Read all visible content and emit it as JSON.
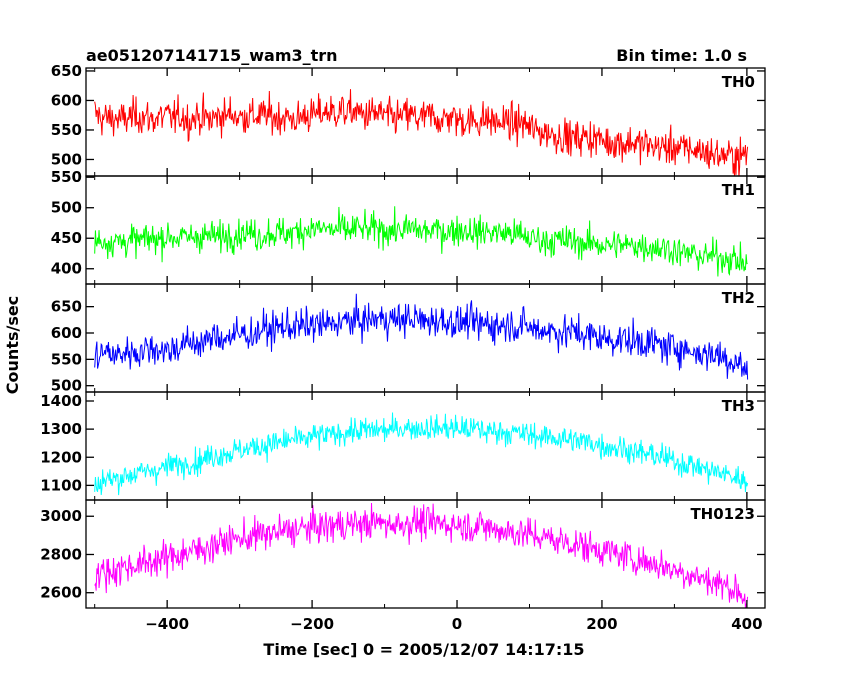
{
  "header": {
    "title": "ae051207141715_wam3_trn",
    "bin_time": "Bin time: 1.0 s"
  },
  "axes": {
    "xlabel": "Time [sec] 0 = 2005/12/07 14:17:15",
    "ylabel": "Counts/sec",
    "xlim": [
      -512,
      425
    ],
    "xticks": [
      -400,
      -200,
      0,
      200,
      400
    ],
    "xtick_labels": [
      "−400",
      "−200",
      "0",
      "200",
      "400"
    ]
  },
  "chart_data": {
    "type": "line",
    "title": "ae051207141715_wam3_trn",
    "xlabel": "Time [sec] 0 = 2005/12/07 14:17:15",
    "ylabel": "Counts/sec",
    "bin_time_s": 1.0,
    "x_range": [
      -500,
      401
    ],
    "sample_step": 10,
    "x_samples": [
      -500,
      -490,
      -480,
      -470,
      -460,
      -450,
      -440,
      -430,
      -420,
      -410,
      -400,
      -390,
      -380,
      -370,
      -360,
      -350,
      -340,
      -330,
      -320,
      -310,
      -300,
      -290,
      -280,
      -270,
      -260,
      -250,
      -240,
      -230,
      -220,
      -210,
      -200,
      -190,
      -180,
      -170,
      -160,
      -150,
      -140,
      -130,
      -120,
      -110,
      -100,
      -90,
      -80,
      -70,
      -60,
      -50,
      -40,
      -30,
      -20,
      -10,
      0,
      10,
      20,
      30,
      40,
      50,
      60,
      70,
      80,
      90,
      100,
      110,
      120,
      130,
      140,
      150,
      160,
      170,
      180,
      190,
      200,
      210,
      220,
      230,
      240,
      250,
      260,
      270,
      280,
      290,
      300,
      310,
      320,
      330,
      340,
      350,
      360,
      370,
      380,
      390,
      400
    ],
    "panels": [
      {
        "name": "TH0",
        "color": "#ff0000",
        "ylim": [
          472,
          655
        ],
        "yticks": [
          500,
          550,
          600,
          650
        ],
        "values": [
          578,
          570,
          570,
          569,
          567,
          572,
          575,
          571,
          568,
          572,
          573,
          570,
          575,
          565,
          573,
          572,
          566,
          574,
          574,
          579,
          570,
          575,
          573,
          575,
          575,
          571,
          573,
          569,
          567,
          576,
          574,
          578,
          582,
          579,
          583,
          580,
          582,
          575,
          577,
          578,
          575,
          570,
          571,
          576,
          573,
          568,
          574,
          573,
          564,
          575,
          567,
          566,
          566,
          565,
          569,
          564,
          562,
          565,
          558,
          562,
          555,
          547,
          547,
          544,
          540,
          539,
          535,
          537,
          538,
          536,
          533,
          528,
          531,
          526,
          531,
          525,
          526,
          522,
          522,
          519,
          522,
          517,
          519,
          516,
          514,
          509,
          508,
          507,
          505,
          503,
          510
        ],
        "noise": 30
      },
      {
        "name": "TH1",
        "color": "#00ff00",
        "ylim": [
          375,
          552
        ],
        "yticks": [
          400,
          450,
          500,
          550
        ],
        "values": [
          445,
          446,
          444,
          446,
          444,
          447,
          446,
          448,
          450,
          449,
          453,
          452,
          450,
          451,
          454,
          453,
          455,
          451,
          455,
          456,
          459,
          460,
          456,
          452,
          460,
          458,
          460,
          457,
          462,
          464,
          466,
          465,
          466,
          462,
          467,
          461,
          467,
          466,
          463,
          466,
          463,
          463,
          463,
          464,
          466,
          462,
          461,
          464,
          462,
          460,
          465,
          463,
          462,
          459,
          461,
          460,
          459,
          458,
          456,
          455,
          449,
          449,
          446,
          446,
          446,
          447,
          444,
          443,
          440,
          443,
          439,
          437,
          441,
          437,
          438,
          439,
          436,
          436,
          434,
          434,
          431,
          425,
          425,
          423,
          419,
          421,
          420,
          418,
          416,
          412,
          405
        ],
        "noise": 25
      },
      {
        "name": "TH2",
        "color": "#0000ff",
        "ylim": [
          488,
          693
        ],
        "yticks": [
          500,
          550,
          600,
          650
        ],
        "values": [
          552,
          562,
          563,
          556,
          563,
          565,
          563,
          569,
          572,
          570,
          566,
          571,
          577,
          580,
          583,
          581,
          588,
          594,
          590,
          595,
          597,
          600,
          596,
          608,
          605,
          609,
          612,
          613,
          614,
          611,
          616,
          615,
          614,
          619,
          622,
          621,
          623,
          624,
          624,
          628,
          626,
          626,
          624,
          627,
          627,
          624,
          620,
          626,
          622,
          624,
          617,
          621,
          621,
          613,
          620,
          613,
          615,
          617,
          614,
          614,
          612,
          604,
          607,
          605,
          601,
          602,
          601,
          601,
          595,
          594,
          590,
          588,
          588,
          589,
          583,
          585,
          582,
          580,
          578,
          570,
          575,
          572,
          565,
          564,
          560,
          561,
          559,
          552,
          547,
          543,
          525
        ],
        "noise": 32
      },
      {
        "name": "TH3",
        "color": "#00ffff",
        "ylim": [
          1048,
          1432
        ],
        "yticks": [
          1100,
          1200,
          1300,
          1400
        ],
        "values": [
          1090,
          1116,
          1124,
          1120,
          1135,
          1139,
          1142,
          1149,
          1154,
          1159,
          1167,
          1175,
          1172,
          1186,
          1181,
          1194,
          1204,
          1209,
          1215,
          1216,
          1231,
          1224,
          1240,
          1238,
          1246,
          1252,
          1251,
          1263,
          1262,
          1264,
          1273,
          1278,
          1275,
          1280,
          1287,
          1292,
          1293,
          1295,
          1296,
          1298,
          1296,
          1296,
          1306,
          1304,
          1305,
          1302,
          1305,
          1302,
          1305,
          1305,
          1300,
          1304,
          1299,
          1303,
          1289,
          1295,
          1293,
          1288,
          1286,
          1284,
          1280,
          1276,
          1271,
          1271,
          1269,
          1265,
          1260,
          1256,
          1256,
          1250,
          1240,
          1238,
          1234,
          1230,
          1225,
          1216,
          1211,
          1209,
          1202,
          1192,
          1186,
          1180,
          1176,
          1168,
          1160,
          1151,
          1146,
          1141,
          1129,
          1126,
          1110
        ],
        "noise": 45
      },
      {
        "name": "TH0123",
        "color": "#ff00ff",
        "ylim": [
          2520,
          3085
        ],
        "yticks": [
          2600,
          2800,
          3000
        ],
        "values": [
          2690,
          2704,
          2710,
          2722,
          2733,
          2741,
          2748,
          2756,
          2767,
          2775,
          2783,
          2794,
          2804,
          2814,
          2822,
          2834,
          2843,
          2855,
          2867,
          2874,
          2883,
          2887,
          2900,
          2903,
          2906,
          2913,
          2920,
          2925,
          2931,
          2935,
          2944,
          2946,
          2946,
          2951,
          2957,
          2951,
          2965,
          2959,
          2962,
          2967,
          2960,
          2962,
          2960,
          2962,
          2969,
          2968,
          2965,
          2962,
          2961,
          2958,
          2957,
          2947,
          2951,
          2948,
          2945,
          2935,
          2927,
          2920,
          2919,
          2911,
          2904,
          2896,
          2889,
          2880,
          2871,
          2865,
          2858,
          2847,
          2840,
          2831,
          2825,
          2813,
          2802,
          2792,
          2784,
          2772,
          2763,
          2753,
          2744,
          2731,
          2721,
          2710,
          2698,
          2686,
          2673,
          2660,
          2650,
          2637,
          2624,
          2604,
          2560
        ],
        "noise": 85
      }
    ]
  }
}
